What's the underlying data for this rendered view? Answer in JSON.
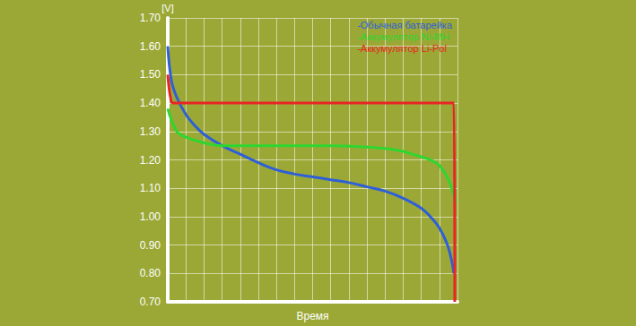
{
  "chart_data": {
    "type": "line",
    "x_label": "Время",
    "y_label": "[V]",
    "xlim": [
      0,
      16
    ],
    "xticks": [
      0,
      1,
      2,
      3,
      4,
      5,
      6,
      7,
      8,
      9,
      10,
      11,
      12,
      13,
      14,
      15,
      16
    ],
    "ylim": [
      0.7,
      1.7
    ],
    "yticks": [
      {
        "value": 0.7,
        "label": "0.70"
      },
      {
        "value": 0.8,
        "label": "0.80"
      },
      {
        "value": 0.9,
        "label": "0.90"
      },
      {
        "value": 1.0,
        "label": "1.00"
      },
      {
        "value": 1.1,
        "label": "1.10"
      },
      {
        "value": 1.2,
        "label": "1.20"
      },
      {
        "value": 1.3,
        "label": "1.30"
      },
      {
        "value": 1.4,
        "label": "1.40"
      },
      {
        "value": 1.5,
        "label": "1.50"
      },
      {
        "value": 1.6,
        "label": "1.60"
      },
      {
        "value": 1.7,
        "label": "1.70"
      }
    ],
    "grid": true,
    "legend": "top-right",
    "tick_labels": "y",
    "series": [
      {
        "name": "-Обычная батарейка",
        "color": "#2e5fd8",
        "x": [
          0,
          0.2,
          0.5,
          1,
          1.5,
          2,
          3,
          4,
          5,
          6,
          7,
          8,
          9,
          10,
          11,
          12,
          13,
          14,
          14.5,
          15,
          15.5,
          15.8
        ],
        "values": [
          1.6,
          1.48,
          1.42,
          1.36,
          1.32,
          1.29,
          1.25,
          1.22,
          1.19,
          1.165,
          1.15,
          1.14,
          1.13,
          1.12,
          1.105,
          1.09,
          1.065,
          1.03,
          1.0,
          0.96,
          0.89,
          0.8
        ]
      },
      {
        "name": "-Аккумулятор Ni-MH",
        "color": "#2fd62f",
        "x": [
          0,
          0.5,
          1,
          2,
          3,
          5,
          7,
          9,
          11,
          12,
          13,
          13.5,
          14.5,
          15,
          15.5,
          15.9
        ],
        "values": [
          1.38,
          1.3,
          1.28,
          1.26,
          1.25,
          1.25,
          1.25,
          1.25,
          1.245,
          1.24,
          1.23,
          1.22,
          1.2,
          1.18,
          1.13,
          1.05
        ]
      },
      {
        "name": "-Аккумулятор Li-Pol",
        "color": "#e82525",
        "x": [
          0,
          0.15,
          0.3,
          2,
          6,
          10,
          14,
          15.8,
          15.85
        ],
        "values": [
          1.5,
          1.42,
          1.4,
          1.4,
          1.4,
          1.4,
          1.4,
          1.4,
          0.7
        ]
      }
    ]
  }
}
